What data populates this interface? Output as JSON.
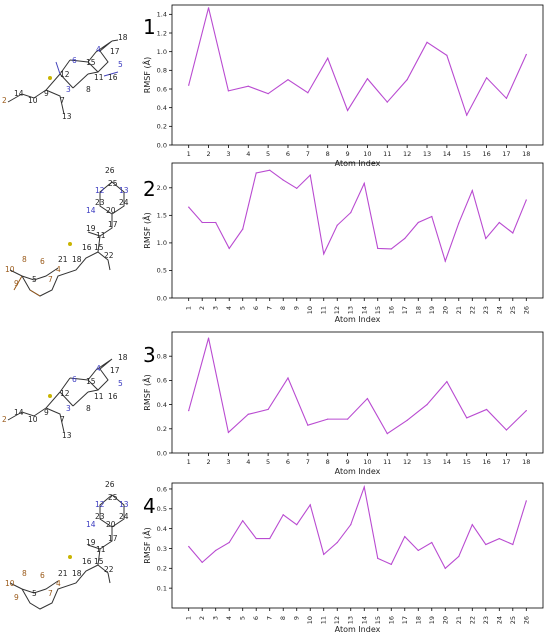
{
  "colors": {
    "line": "#b94bd1",
    "axis": "#000000",
    "atom_s": "#c9b400",
    "atom_o": "#9a5a1a",
    "atom_n": "#3a3ac0"
  },
  "chart_data": [
    {
      "panel": "1",
      "type": "line",
      "x": [
        1,
        2,
        3,
        4,
        5,
        6,
        7,
        8,
        9,
        10,
        11,
        12,
        13,
        14,
        15,
        16,
        17,
        18
      ],
      "series": [
        {
          "values": [
            0.64,
            1.47,
            0.58,
            0.63,
            0.55,
            0.7,
            0.56,
            0.93,
            0.37,
            0.71,
            0.46,
            0.7,
            1.1,
            0.96,
            0.32,
            0.72,
            0.5,
            0.97
          ]
        }
      ],
      "ylim": [
        0,
        1.5
      ],
      "yticks": [
        "0.0",
        "0.2",
        "0.4",
        "0.6",
        "0.8",
        "1.0",
        "1.2",
        "1.4"
      ],
      "xlabel": "Atom Index",
      "ylabel": "RMSF (Å)"
    },
    {
      "panel": "2",
      "type": "line",
      "x": [
        1,
        2,
        3,
        4,
        5,
        6,
        7,
        8,
        9,
        10,
        11,
        12,
        13,
        14,
        15,
        16,
        17,
        18,
        19,
        20,
        21,
        22,
        23,
        24,
        25,
        26
      ],
      "series": [
        {
          "values": [
            1.65,
            1.37,
            1.37,
            0.9,
            1.25,
            2.27,
            2.32,
            2.14,
            1.99,
            2.23,
            0.8,
            1.32,
            1.55,
            2.08,
            0.9,
            0.89,
            1.08,
            1.37,
            1.48,
            0.67,
            1.36,
            1.95,
            1.08,
            1.37,
            1.18,
            1.78
          ]
        }
      ],
      "ylim": [
        0,
        2.45
      ],
      "yticks": [
        "0.0",
        "0.5",
        "1.0",
        "1.5",
        "2.0"
      ],
      "xlabel": "Atom Index",
      "ylabel": "RMSF (Å)"
    },
    {
      "panel": "3",
      "type": "line",
      "x": [
        1,
        2,
        3,
        4,
        5,
        6,
        7,
        8,
        9,
        10,
        11,
        12,
        13,
        14,
        15,
        16,
        17,
        18
      ],
      "series": [
        {
          "values": [
            0.35,
            0.95,
            0.17,
            0.32,
            0.36,
            0.62,
            0.23,
            0.28,
            0.28,
            0.45,
            0.16,
            0.27,
            0.4,
            0.59,
            0.29,
            0.36,
            0.19,
            0.35
          ]
        }
      ],
      "ylim": [
        0,
        1.0
      ],
      "yticks": [
        "0.0",
        "0.2",
        "0.4",
        "0.6",
        "0.8"
      ],
      "xlabel": "Atom Index",
      "ylabel": "RMSF (Å)"
    },
    {
      "panel": "4",
      "type": "line",
      "x": [
        1,
        2,
        3,
        4,
        5,
        6,
        7,
        8,
        9,
        10,
        11,
        12,
        13,
        14,
        15,
        16,
        17,
        18,
        19,
        20,
        21,
        22,
        23,
        24,
        25,
        26
      ],
      "series": [
        {
          "values": [
            0.31,
            0.23,
            0.29,
            0.33,
            0.44,
            0.35,
            0.35,
            0.47,
            0.42,
            0.52,
            0.27,
            0.33,
            0.42,
            0.61,
            0.25,
            0.22,
            0.36,
            0.29,
            0.33,
            0.2,
            0.26,
            0.42,
            0.32,
            0.35,
            0.32,
            0.54
          ]
        }
      ],
      "ylim": [
        0,
        0.63
      ],
      "yticks": [
        "0.1",
        "0.2",
        "0.3",
        "0.4",
        "0.5",
        "0.6"
      ],
      "xlabel": "Atom Index",
      "ylabel": "RMSF (Å)"
    }
  ],
  "molecules": [
    {
      "labels": [
        "18",
        "4",
        "17",
        "6",
        "15",
        "5",
        "12",
        "11",
        "16",
        "3",
        "8",
        "9",
        "14",
        "10",
        "7",
        "2",
        "13"
      ]
    },
    {
      "labels": [
        "26",
        "25",
        "12",
        "13",
        "23",
        "24",
        "14",
        "20",
        "17",
        "19",
        "11",
        "16",
        "15",
        "22",
        "21",
        "18",
        "8",
        "6",
        "10",
        "4",
        "5",
        "7",
        "9"
      ]
    },
    {
      "labels": [
        "18",
        "4",
        "17",
        "6",
        "15",
        "5",
        "12",
        "11",
        "16",
        "3",
        "8",
        "9",
        "14",
        "10",
        "7",
        "2",
        "13"
      ]
    },
    {
      "labels": [
        "26",
        "25",
        "12",
        "13",
        "23",
        "24",
        "14",
        "20",
        "17",
        "19",
        "11",
        "16",
        "15",
        "22",
        "21",
        "18",
        "8",
        "6",
        "10",
        "4",
        "5",
        "7",
        "9"
      ]
    }
  ]
}
